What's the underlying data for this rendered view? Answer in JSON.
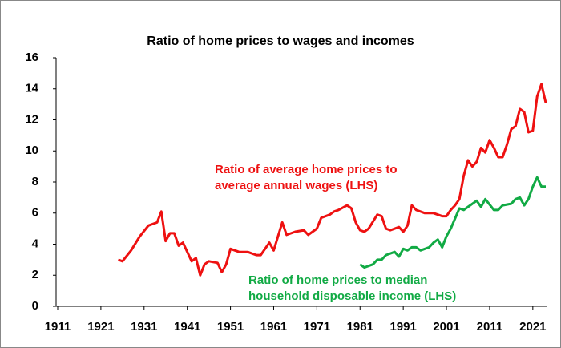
{
  "chart_data": {
    "type": "line",
    "title": "Ratio of home prices to wages and incomes",
    "xlim": [
      1911,
      2024
    ],
    "xticks": [
      1911,
      1921,
      1931,
      1941,
      1951,
      1961,
      1971,
      1981,
      1991,
      2001,
      2011,
      2021
    ],
    "ylim": [
      0,
      16
    ],
    "yticks": [
      0,
      2,
      4,
      6,
      8,
      10,
      12,
      14,
      16
    ],
    "series": [
      {
        "name": "Ratio of average home prices to average annual wages (LHS)",
        "color": "#ee1111",
        "x": [
          1925,
          1926,
          1928,
          1930,
          1932,
          1934,
          1935,
          1936,
          1937,
          1938,
          1939,
          1940,
          1942,
          1943,
          1944,
          1945,
          1946,
          1948,
          1949,
          1950,
          1951,
          1953,
          1955,
          1957,
          1958,
          1960,
          1961,
          1963,
          1964,
          1966,
          1968,
          1969,
          1971,
          1972,
          1974,
          1975,
          1976,
          1978,
          1979,
          1980,
          1981,
          1982,
          1983,
          1985,
          1986,
          1987,
          1988,
          1990,
          1991,
          1992,
          1993,
          1994,
          1996,
          1998,
          2000,
          2001,
          2002,
          2003,
          2004,
          2005,
          2006,
          2007,
          2008,
          2009,
          2010,
          2011,
          2012,
          2013,
          2014,
          2015,
          2016,
          2017,
          2018,
          2019,
          2020,
          2021,
          2022,
          2023,
          2024
        ],
        "values": [
          3.0,
          2.9,
          3.6,
          4.5,
          5.2,
          5.4,
          6.1,
          4.2,
          4.7,
          4.7,
          3.9,
          4.1,
          2.9,
          3.1,
          2.0,
          2.7,
          2.9,
          2.8,
          2.2,
          2.7,
          3.7,
          3.5,
          3.5,
          3.3,
          3.3,
          4.1,
          3.6,
          5.4,
          4.6,
          4.8,
          4.9,
          4.6,
          5.0,
          5.7,
          5.9,
          6.1,
          6.2,
          6.5,
          6.3,
          5.4,
          4.9,
          4.8,
          5.0,
          5.9,
          5.8,
          5.0,
          4.9,
          5.1,
          4.8,
          5.2,
          6.5,
          6.2,
          6.0,
          6.0,
          5.8,
          5.8,
          6.2,
          6.5,
          6.9,
          8.4,
          9.4,
          9.0,
          9.3,
          10.2,
          9.9,
          10.7,
          10.2,
          9.6,
          9.6,
          10.4,
          11.4,
          11.6,
          12.7,
          12.5,
          11.2,
          11.3,
          13.5,
          14.3,
          13.1
        ]
      },
      {
        "name": "Ratio of home prices to median household disposable income (LHS)",
        "color": "#11aa44",
        "x": [
          1981,
          1982,
          1984,
          1985,
          1986,
          1987,
          1989,
          1990,
          1991,
          1992,
          1993,
          1994,
          1995,
          1997,
          1998,
          1999,
          2000,
          2001,
          2002,
          2004,
          2005,
          2006,
          2008,
          2009,
          2010,
          2012,
          2013,
          2014,
          2016,
          2017,
          2018,
          2019,
          2020,
          2021,
          2022,
          2023,
          2024
        ],
        "values": [
          2.7,
          2.5,
          2.7,
          3.0,
          3.0,
          3.3,
          3.5,
          3.2,
          3.7,
          3.6,
          3.8,
          3.8,
          3.6,
          3.8,
          4.1,
          4.3,
          3.8,
          4.5,
          5.0,
          6.3,
          6.2,
          6.4,
          6.8,
          6.4,
          6.9,
          6.2,
          6.2,
          6.5,
          6.6,
          6.9,
          7.0,
          6.5,
          6.9,
          7.7,
          8.3,
          7.7,
          7.7
        ]
      }
    ],
    "annotations": [
      {
        "lines": [
          "Ratio of average home prices to",
          "average annual wages (LHS)"
        ],
        "color": "#ee1111"
      },
      {
        "lines": [
          "Ratio of home prices to median",
          "household disposable income (LHS)"
        ],
        "color": "#11aa44"
      }
    ]
  }
}
